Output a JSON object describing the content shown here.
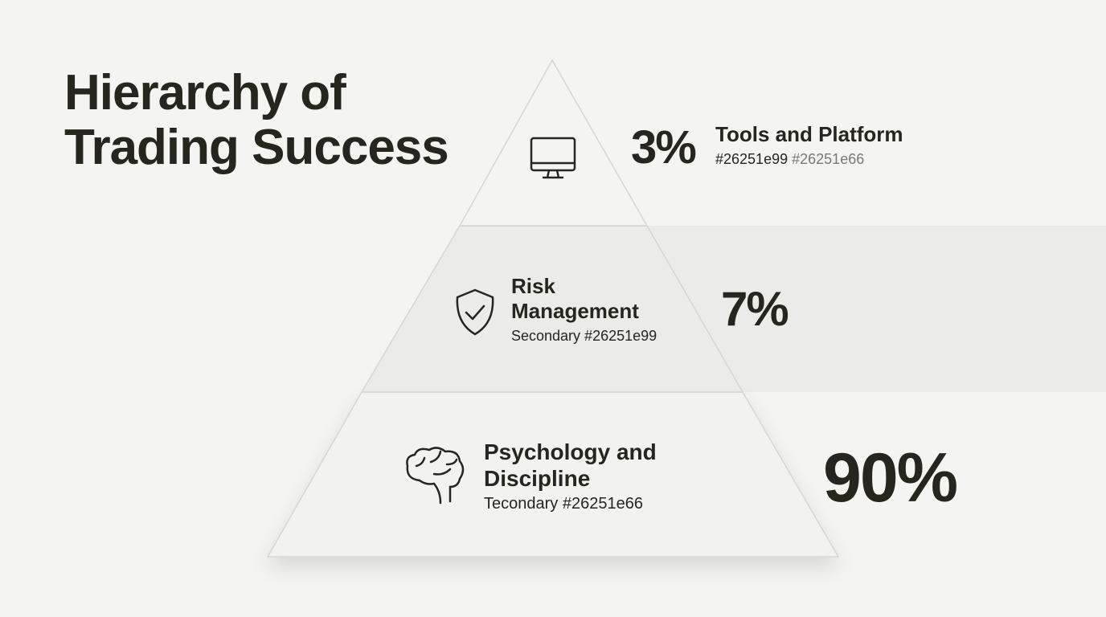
{
  "title": "Hierarchy of Trading Success",
  "tiers": [
    {
      "label": "Tools and Platform",
      "percent": "3%",
      "value": 3,
      "sub_a": "#26251e99",
      "sub_b": "#26251e66",
      "icon": "monitor-icon"
    },
    {
      "label_line1": "Risk",
      "label_line2": "Management",
      "percent": "7%",
      "value": 7,
      "sub": "Secondary #26251e99",
      "icon": "shield-check-icon"
    },
    {
      "label_line1": "Psychology and",
      "label_line2": "Discipline",
      "percent": "90%",
      "value": 90,
      "sub": "Tecondary #26251e66",
      "icon": "brain-icon"
    }
  ],
  "colors": {
    "text": "#26251e",
    "background": "#f4f4f0",
    "tier": "#f3f3ef",
    "highlight": "#ebebe7"
  }
}
